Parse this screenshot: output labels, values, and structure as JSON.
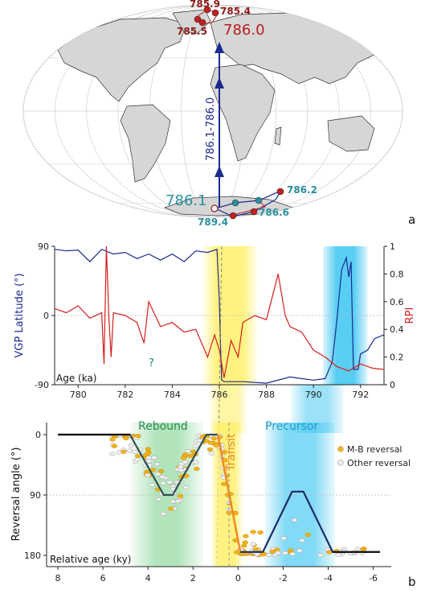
{
  "panel_labels": {
    "a": "a",
    "b": "b"
  },
  "chart_data": [
    {
      "type": "map",
      "panel": "a",
      "projection": "Mollweide (global)",
      "path_label": "786.1-786.0",
      "points": [
        {
          "label": "785.9",
          "lat": 86,
          "lon": -20,
          "label_color": "#8b1a1a"
        },
        {
          "label": "785.4",
          "lat": 84,
          "lon": 12,
          "label_color": "#8b1a1a"
        },
        {
          "label": "785.5",
          "lat": 80,
          "lon": -35,
          "label_color": "#8b1a1a"
        },
        {
          "label": "786.0",
          "lat": 78,
          "lon": 22,
          "label_color": "#b81e1e"
        },
        {
          "label": "786.1",
          "lat": -74,
          "lon": -15,
          "label_color": "#2a8f9e"
        },
        {
          "label": "786.2",
          "lat": -60,
          "lon": 48,
          "label_color": "#2a8f9e"
        },
        {
          "label": "789.4",
          "lat": -80,
          "lon": 5,
          "label_color": "#2a8f9e"
        },
        {
          "label": "786.6",
          "lat": -78,
          "lon": 35,
          "label_color": "#2a8f9e"
        }
      ],
      "path_color": "#1b2a8f"
    },
    {
      "type": "line",
      "panel": "b-top",
      "xlabel": "Age (ka)",
      "xlim": [
        779,
        793
      ],
      "xticks": [
        780,
        782,
        784,
        786,
        788,
        790,
        792
      ],
      "y_left": {
        "label": "VGP Latitude (°)",
        "lim": [
          -90,
          90
        ],
        "ticks": [
          90,
          0,
          -90
        ],
        "color": "#1b2a8f"
      },
      "y_right": {
        "label": "RPI",
        "lim": [
          0,
          1
        ],
        "ticks": [
          1,
          0.8,
          0.6,
          0.4,
          0.2,
          0
        ],
        "color": "#d41e1e"
      },
      "annotation": "?",
      "dashed_marker_x": 786.1,
      "bands": [
        {
          "from": 785.3,
          "to": 787.6,
          "color": "#fff06a"
        },
        {
          "from": 790.4,
          "to": 792.3,
          "color": "#46c8f2"
        }
      ],
      "series": [
        {
          "axis": "left",
          "color": "#1b2a8f",
          "x": [
            779,
            779.5,
            780,
            780.5,
            781,
            781.5,
            782,
            782.5,
            783,
            783.5,
            784,
            784.5,
            785,
            785.5,
            785.9,
            786.0,
            786.05,
            786.1,
            786.2,
            786.5,
            787,
            788,
            789,
            790,
            790.5,
            790.8,
            791.0,
            791.2,
            791.4,
            791.5,
            791.6,
            791.7,
            791.9,
            792.0,
            792.3,
            792.6,
            793
          ],
          "y": [
            86,
            84,
            85,
            70,
            86,
            80,
            82,
            74,
            80,
            72,
            80,
            70,
            84,
            82,
            86,
            20,
            -40,
            -84,
            -86,
            -86,
            -86,
            -88,
            -80,
            -84,
            -82,
            -60,
            -5,
            60,
            75,
            50,
            70,
            -70,
            -70,
            -50,
            -45,
            -30,
            -25
          ]
        },
        {
          "axis": "right",
          "color": "#d41e1e",
          "x": [
            779,
            779.5,
            780,
            780.5,
            781,
            781.1,
            781.2,
            781.3,
            781.4,
            781.5,
            782,
            782.5,
            782.8,
            783,
            783.5,
            784,
            784.5,
            785,
            785.5,
            785.8,
            786.0,
            786.2,
            786.5,
            786.8,
            787,
            787.5,
            788,
            788.2,
            788.5,
            788.8,
            789,
            789.5,
            790,
            790.5,
            791,
            791.5,
            792,
            792.5,
            793
          ],
          "y": [
            0.55,
            0.52,
            0.57,
            0.48,
            0.52,
            0.15,
            1.0,
            0.5,
            0.2,
            0.52,
            0.5,
            0.45,
            0.3,
            0.6,
            0.42,
            0.45,
            0.38,
            0.4,
            0.2,
            0.36,
            0.25,
            0.05,
            0.32,
            0.2,
            0.45,
            0.5,
            0.47,
            0.6,
            0.8,
            0.5,
            0.42,
            0.38,
            0.25,
            0.2,
            0.13,
            0.1,
            0.15,
            0.12,
            0.11
          ]
        }
      ]
    },
    {
      "type": "scatter",
      "panel": "b-bottom",
      "xlabel": "Relative age (ky)",
      "ylabel": "Reversal angle (°)",
      "xlim": [
        8.5,
        -6.8
      ],
      "ylim": [
        0,
        180
      ],
      "xticks": [
        8,
        6,
        4,
        2,
        0,
        -2,
        -4,
        -6
      ],
      "yticks": [
        0,
        90,
        180
      ],
      "legend_position": "top-right",
      "legend": [
        {
          "name": "M-B reversal",
          "color": "#f2b21b"
        },
        {
          "name": "Other reversal",
          "color": "#d8d8d8"
        }
      ],
      "band_labels": [
        {
          "text": "Rebound",
          "color": "#2d8a54"
        },
        {
          "text": "Transit",
          "color": "#f08a24"
        },
        {
          "text": "Precursor",
          "color": "#1e9fc9"
        }
      ],
      "bands": [
        {
          "from": 4.8,
          "to": 1.5,
          "color": "#7fd38f"
        },
        {
          "from": 1.2,
          "to": -0.2,
          "color": "#fff06a"
        },
        {
          "from": -1.2,
          "to": -4.3,
          "color": "#46c8f2"
        }
      ],
      "dashed_marker_x": 0.4,
      "rebound_curve": {
        "color": "#2f4f4f",
        "x": [
          8.0,
          4.8,
          3.3,
          2.9,
          1.4,
          0.9
        ],
        "y": [
          0,
          0,
          90,
          90,
          0,
          0
        ]
      },
      "transit_curve": {
        "color": "#f08a24",
        "x": [
          0.9,
          -0.1
        ],
        "y": [
          0,
          175
        ]
      },
      "precursor_curve": {
        "color": "#1b2a6a",
        "x": [
          -0.1,
          -1.1,
          -2.4,
          -2.9,
          -4.2,
          -6.3
        ],
        "y": [
          175,
          175,
          85,
          85,
          175,
          175
        ]
      }
    }
  ]
}
